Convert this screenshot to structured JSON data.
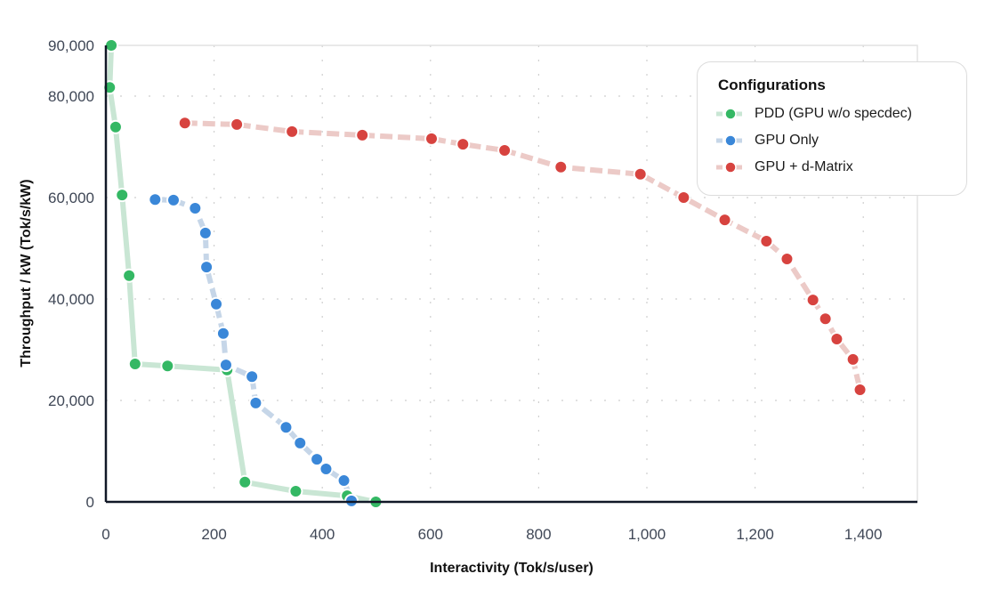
{
  "chart_data": {
    "type": "line",
    "title": "",
    "xlabel": "Interactivity (Tok/s/user)",
    "ylabel": "Throughput / kW (Tok/s/kW)",
    "xlim": [
      0,
      1500
    ],
    "ylim": [
      0,
      90000
    ],
    "xticks": [
      0,
      200,
      400,
      600,
      800,
      1000,
      1200,
      1400
    ],
    "xtick_labels": [
      "0",
      "200",
      "400",
      "600",
      "800",
      "1,000",
      "1,200",
      "1,400"
    ],
    "yticks": [
      0,
      20000,
      40000,
      60000,
      80000,
      90000
    ],
    "ytick_labels": [
      "0",
      "20,000",
      "40,000",
      "60,000",
      "80,000",
      "90,000"
    ],
    "grid": true,
    "legend": {
      "title": "Configurations",
      "placement": "top-right"
    },
    "series": [
      {
        "name": "PDD (GPU w/o specdec)",
        "color": "#34b864",
        "line_color": "#c9e6d4",
        "dashed": false,
        "points": [
          [
            10,
            90000
          ],
          [
            7,
            81700
          ],
          [
            18,
            73900
          ],
          [
            30,
            60500
          ],
          [
            43,
            44600
          ],
          [
            54,
            27200
          ],
          [
            114,
            26800
          ],
          [
            224,
            26000
          ],
          [
            257,
            3900
          ],
          [
            351,
            2100
          ],
          [
            446,
            1200
          ],
          [
            499,
            0
          ]
        ]
      },
      {
        "name": "GPU Only",
        "color": "#3a87d8",
        "line_color": "#c6d6e8",
        "dashed": true,
        "points": [
          [
            91,
            59600
          ],
          [
            125,
            59500
          ],
          [
            165,
            57900
          ],
          [
            184,
            53000
          ],
          [
            186,
            46300
          ],
          [
            204,
            39000
          ],
          [
            217,
            33200
          ],
          [
            222,
            27000
          ],
          [
            270,
            24700
          ],
          [
            277,
            19500
          ],
          [
            333,
            14700
          ],
          [
            359,
            11600
          ],
          [
            390,
            8400
          ],
          [
            407,
            6500
          ],
          [
            440,
            4200
          ],
          [
            454,
            200
          ]
        ]
      },
      {
        "name": "GPU + d-Matrix",
        "color": "#d7433f",
        "line_color": "#eccac7",
        "dashed": true,
        "points": [
          [
            146,
            74700
          ],
          [
            242,
            74400
          ],
          [
            344,
            73000
          ],
          [
            474,
            72300
          ],
          [
            602,
            71600
          ],
          [
            660,
            70500
          ],
          [
            737,
            69300
          ],
          [
            841,
            66000
          ],
          [
            988,
            64600
          ],
          [
            1068,
            60000
          ],
          [
            1144,
            55600
          ],
          [
            1221,
            51400
          ],
          [
            1259,
            47900
          ],
          [
            1307,
            39800
          ],
          [
            1330,
            36100
          ],
          [
            1351,
            32100
          ],
          [
            1381,
            28100
          ],
          [
            1394,
            22100
          ]
        ]
      }
    ]
  }
}
